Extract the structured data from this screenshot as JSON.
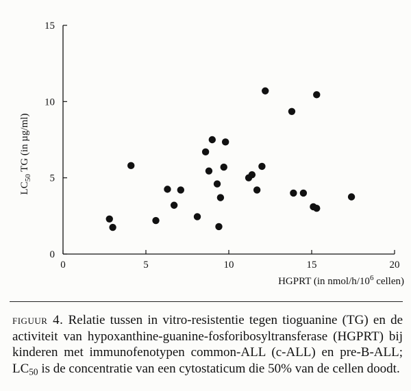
{
  "chart_data": {
    "type": "scatter",
    "xlabel": {
      "before": "HGPRT (in nmol/h/10",
      "sup": "6",
      "after": " cellen)"
    },
    "ylabel": {
      "before": "LC",
      "sub": "50",
      "after": " TG (in µg/ml)"
    },
    "xlim": [
      0,
      20
    ],
    "ylim": [
      0,
      15
    ],
    "xticks": [
      "0",
      "5",
      "10",
      "15",
      "20"
    ],
    "yticks": [
      "0",
      "5",
      "10",
      "15"
    ],
    "grid": false,
    "marker_color": "#111111",
    "points": [
      {
        "x": 2.8,
        "y": 2.3
      },
      {
        "x": 3.0,
        "y": 1.75
      },
      {
        "x": 4.1,
        "y": 5.8
      },
      {
        "x": 5.6,
        "y": 2.2
      },
      {
        "x": 6.3,
        "y": 4.25
      },
      {
        "x": 6.7,
        "y": 3.2
      },
      {
        "x": 7.1,
        "y": 4.2
      },
      {
        "x": 8.1,
        "y": 2.45
      },
      {
        "x": 8.6,
        "y": 6.7
      },
      {
        "x": 8.8,
        "y": 5.45
      },
      {
        "x": 9.0,
        "y": 7.5
      },
      {
        "x": 9.3,
        "y": 4.6
      },
      {
        "x": 9.4,
        "y": 1.8
      },
      {
        "x": 9.5,
        "y": 3.7
      },
      {
        "x": 9.7,
        "y": 5.7
      },
      {
        "x": 9.8,
        "y": 7.35
      },
      {
        "x": 11.2,
        "y": 5.0
      },
      {
        "x": 11.4,
        "y": 5.2
      },
      {
        "x": 11.7,
        "y": 4.2
      },
      {
        "x": 12.0,
        "y": 5.75
      },
      {
        "x": 12.2,
        "y": 10.7
      },
      {
        "x": 13.8,
        "y": 9.35
      },
      {
        "x": 13.9,
        "y": 4.0
      },
      {
        "x": 14.5,
        "y": 4.0
      },
      {
        "x": 15.1,
        "y": 3.1
      },
      {
        "x": 15.3,
        "y": 3.0
      },
      {
        "x": 15.3,
        "y": 10.45
      },
      {
        "x": 17.4,
        "y": 3.75
      }
    ]
  },
  "caption": {
    "label": "figuur 4.",
    "text_before": " Relatie tussen in vitro-resistentie tegen tioguanine (TG) en de activiteit van hypoxanthine-guanine-fosforibosyltransferase (HGPRT) bij kinderen met immunofenotypen common-ALL (c-ALL) en pre-B-ALL; LC",
    "sub": "50",
    "text_after": " is de concentratie van een cytostaticum die 50% van de cellen doodt."
  }
}
